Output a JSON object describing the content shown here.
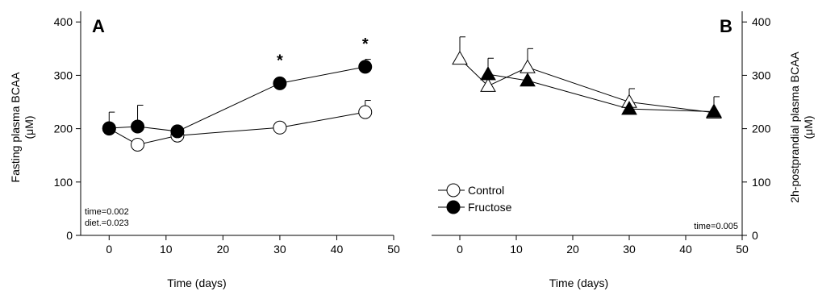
{
  "chart_data": [
    {
      "type": "line",
      "panel_label": "A",
      "xlabel": "Time (days)",
      "ylabel_line1": "Fasting plasma BCAA",
      "ylabel_line2": "(μM)",
      "xlim": [
        -5,
        50
      ],
      "ylim": [
        0,
        420
      ],
      "xticks": [
        0,
        10,
        20,
        30,
        40,
        50
      ],
      "yticks": [
        0,
        100,
        200,
        300,
        400
      ],
      "y_axis_side": "left",
      "series": [
        {
          "name": "Control",
          "marker": "circle",
          "filled": false,
          "x": [
            0,
            5,
            12,
            30,
            45
          ],
          "y": [
            200,
            170,
            187,
            202,
            231
          ],
          "err": [
            null,
            null,
            null,
            null,
            22
          ]
        },
        {
          "name": "Fructose",
          "marker": "circle",
          "filled": true,
          "x": [
            0,
            5,
            12,
            30,
            45
          ],
          "y": [
            201,
            204,
            195,
            285,
            316
          ],
          "err": [
            30,
            40,
            null,
            null,
            14
          ]
        }
      ],
      "significance": [
        {
          "x": 30,
          "y": 285,
          "symbol": "*"
        },
        {
          "x": 45,
          "y": 316,
          "symbol": "*"
        }
      ],
      "notes": [
        "time=0.002",
        "diet.=0.023"
      ]
    },
    {
      "type": "line",
      "panel_label": "B",
      "xlabel": "Time (days)",
      "ylabel_line1": "2h-postprandial plasma BCAA",
      "ylabel_line2": "(μM)",
      "xlim": [
        -5,
        50
      ],
      "ylim": [
        0,
        420
      ],
      "xticks": [
        0,
        10,
        20,
        30,
        40,
        50
      ],
      "yticks": [
        0,
        100,
        200,
        300,
        400
      ],
      "y_axis_side": "right",
      "series": [
        {
          "name": "Control",
          "marker": "triangle",
          "filled": false,
          "x": [
            0,
            5,
            12,
            30,
            45
          ],
          "y": [
            331,
            280,
            315,
            250,
            230
          ],
          "err": [
            41,
            null,
            35,
            25,
            30
          ]
        },
        {
          "name": "Fructose",
          "marker": "triangle",
          "filled": true,
          "x": [
            0,
            5,
            12,
            30,
            45
          ],
          "y": [
            null,
            302,
            290,
            237,
            232
          ],
          "err": [
            null,
            30,
            null,
            null,
            null
          ]
        }
      ],
      "notes": [
        "time=0.005"
      ]
    }
  ],
  "legend": [
    {
      "label": "Control",
      "filled": false
    },
    {
      "label": "Fructose",
      "filled": true
    }
  ]
}
